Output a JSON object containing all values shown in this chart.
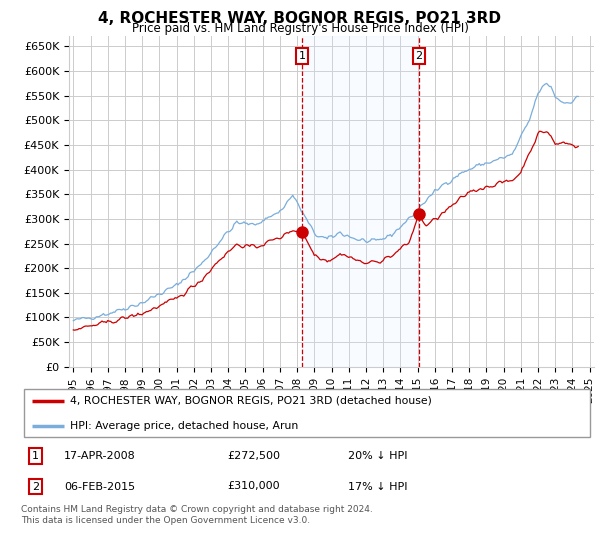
{
  "title": "4, ROCHESTER WAY, BOGNOR REGIS, PO21 3RD",
  "subtitle": "Price paid vs. HM Land Registry's House Price Index (HPI)",
  "ylim": [
    0,
    670000
  ],
  "yticks": [
    0,
    50000,
    100000,
    150000,
    200000,
    250000,
    300000,
    350000,
    400000,
    450000,
    500000,
    550000,
    600000,
    650000
  ],
  "ytick_labels": [
    "£0",
    "£50K",
    "£100K",
    "£150K",
    "£200K",
    "£250K",
    "£300K",
    "£350K",
    "£400K",
    "£450K",
    "£500K",
    "£550K",
    "£600K",
    "£650K"
  ],
  "plot_bg_color": "#ffffff",
  "grid_color": "#cccccc",
  "sale1_date": 2008.29,
  "sale1_price": 272500,
  "sale2_date": 2015.09,
  "sale2_price": 310000,
  "line_red_color": "#cc0000",
  "line_blue_color": "#7aaddb",
  "shade_color": "#ddeeff",
  "vline_color": "#cc0000",
  "legend_label_red": "4, ROCHESTER WAY, BOGNOR REGIS, PO21 3RD (detached house)",
  "legend_label_blue": "HPI: Average price, detached house, Arun",
  "footer": "Contains HM Land Registry data © Crown copyright and database right 2024.\nThis data is licensed under the Open Government Licence v3.0.",
  "xtick_years": [
    1995,
    1996,
    1997,
    1998,
    1999,
    2000,
    2001,
    2002,
    2003,
    2004,
    2005,
    2006,
    2007,
    2008,
    2009,
    2010,
    2011,
    2012,
    2013,
    2014,
    2015,
    2016,
    2017,
    2018,
    2019,
    2020,
    2021,
    2022,
    2023,
    2024,
    2025
  ],
  "xlim": [
    1994.75,
    2025.25
  ]
}
